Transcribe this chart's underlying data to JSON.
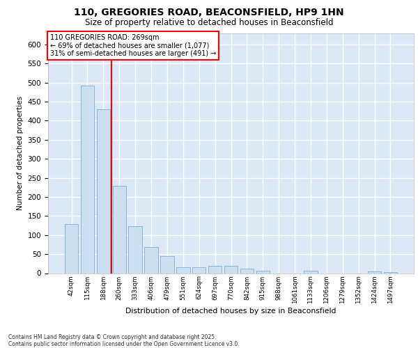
{
  "title_line1": "110, GREGORIES ROAD, BEACONSFIELD, HP9 1HN",
  "title_line2": "Size of property relative to detached houses in Beaconsfield",
  "xlabel": "Distribution of detached houses by size in Beaconsfield",
  "ylabel": "Number of detached properties",
  "footer": "Contains HM Land Registry data © Crown copyright and database right 2025.\nContains public sector information licensed under the Open Government Licence v3.0.",
  "categories": [
    "42sqm",
    "115sqm",
    "188sqm",
    "260sqm",
    "333sqm",
    "406sqm",
    "479sqm",
    "551sqm",
    "624sqm",
    "697sqm",
    "770sqm",
    "842sqm",
    "915sqm",
    "988sqm",
    "1061sqm",
    "1133sqm",
    "1206sqm",
    "1279sqm",
    "1352sqm",
    "1424sqm",
    "1497sqm"
  ],
  "values": [
    128,
    493,
    430,
    230,
    123,
    68,
    45,
    15,
    15,
    20,
    20,
    12,
    7,
    0,
    0,
    7,
    0,
    0,
    0,
    5,
    3
  ],
  "bar_color": "#ccdff0",
  "bar_edge_color": "#7aafd4",
  "vline_color": "red",
  "vline_pos": 2.5,
  "annotation_text": "110 GREGORIES ROAD: 269sqm\n← 69% of detached houses are smaller (1,077)\n31% of semi-detached houses are larger (491) →",
  "bg_color": "#dce8f5",
  "grid_color": "white",
  "fig_bg": "#ffffff",
  "ylim": [
    0,
    630
  ],
  "yticks": [
    0,
    50,
    100,
    150,
    200,
    250,
    300,
    350,
    400,
    450,
    500,
    550,
    600
  ]
}
